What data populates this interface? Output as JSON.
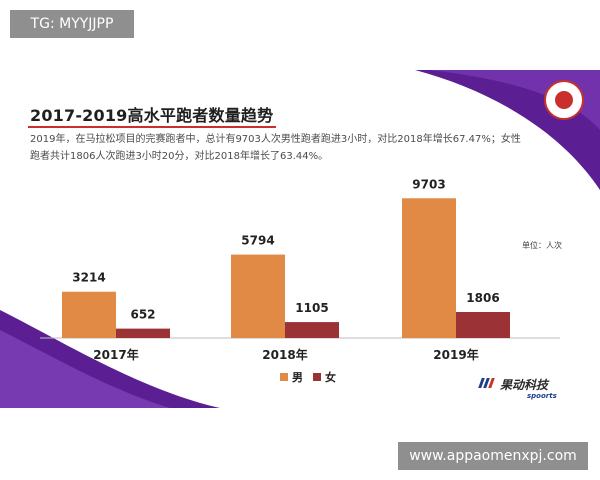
{
  "watermarks": {
    "top": "TG: MYYJJPP",
    "bottom": "www.appaomenxpj.com"
  },
  "header": {
    "title": "2017-2019高水平跑者数量趋势",
    "description": "2019年，在马拉松项目的完赛跑者中，总计有9703人次男性跑者跑进3小时，对比2018年增长67.47%；女性跑者共计1806人次跑进3小时20分，对比2018年增长了63.44%。"
  },
  "unit_label": "单位：人次",
  "brand": {
    "name": "果动科技",
    "sub": "spoorts"
  },
  "colors": {
    "male": "#e08a45",
    "female": "#9a3236",
    "accent_purple": "#5b1f93",
    "title_rule": "#c9302c"
  },
  "chart_data": {
    "type": "bar",
    "categories": [
      "2017年",
      "2018年",
      "2019年"
    ],
    "series": [
      {
        "name": "男",
        "values": [
          3214,
          5794,
          9703
        ]
      },
      {
        "name": "女",
        "values": [
          652,
          1105,
          1806
        ]
      }
    ],
    "ylim": [
      0,
      10000
    ],
    "grid": false,
    "legend": "bottom",
    "data_labels": true
  }
}
